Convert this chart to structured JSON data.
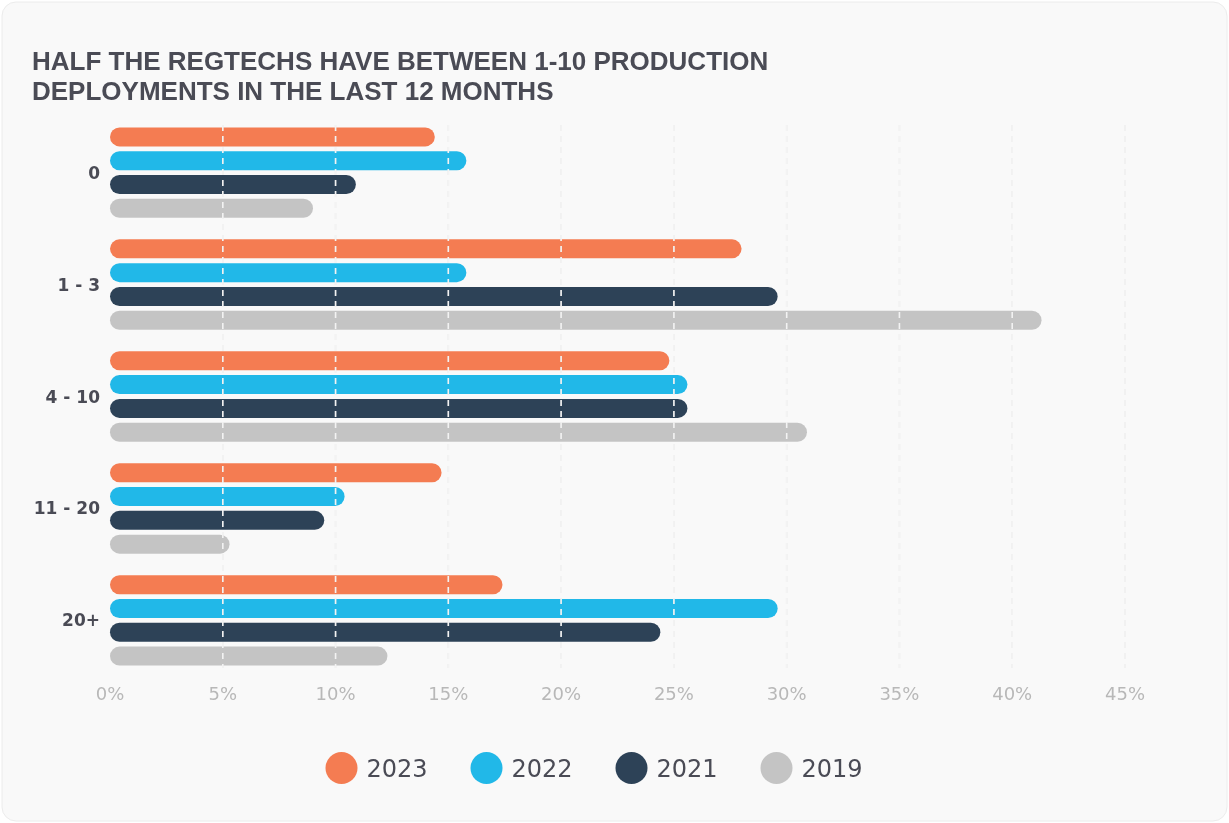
{
  "chart_data": {
    "type": "bar",
    "orientation": "horizontal",
    "title": "HALF THE REGTECHS HAVE BETWEEN 1-10 PRODUCTION DEPLOYMENTS IN THE LAST 12 MONTHS",
    "categories": [
      "0",
      "1 - 3",
      "4 - 10",
      "11 - 20",
      "20+"
    ],
    "series": [
      {
        "name": "2023",
        "color": "#f47c52",
        "values": [
          14.4,
          28.0,
          24.8,
          14.7,
          17.4
        ]
      },
      {
        "name": "2022",
        "color": "#21b8e8",
        "values": [
          15.8,
          15.8,
          25.6,
          10.4,
          29.6
        ]
      },
      {
        "name": "2021",
        "color": "#2d4257",
        "values": [
          10.9,
          29.6,
          25.6,
          9.5,
          24.4
        ]
      },
      {
        "name": "2019",
        "color": "#c4c4c4",
        "values": [
          9.0,
          41.3,
          30.9,
          5.3,
          12.3
        ]
      }
    ],
    "xlim": [
      0,
      45
    ],
    "xticks": [
      {
        "value": 0,
        "label": "0%"
      },
      {
        "value": 5,
        "label": "5%"
      },
      {
        "value": 10,
        "label": "10%"
      },
      {
        "value": 15,
        "label": "15%"
      },
      {
        "value": 20,
        "label": "20%"
      },
      {
        "value": 25,
        "label": "25%"
      },
      {
        "value": 30,
        "label": "30%"
      },
      {
        "value": 35,
        "label": "35%"
      },
      {
        "value": 40,
        "label": "40%"
      },
      {
        "value": 45,
        "label": "45%"
      }
    ],
    "grid": "x",
    "legend": "bottom"
  }
}
